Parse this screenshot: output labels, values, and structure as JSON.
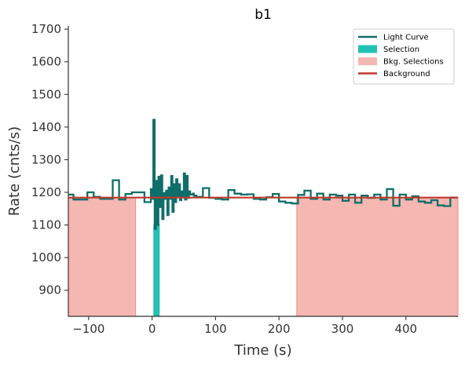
{
  "chart_data": {
    "type": "line",
    "title": "b1",
    "xlabel": "Time (s)",
    "ylabel": "Rate (cnts/s)",
    "xlim": [
      -132,
      482
    ],
    "ylim": [
      820,
      1710
    ],
    "xticks": [
      -100,
      0,
      100,
      200,
      300,
      400
    ],
    "xtick_labels": [
      "−100",
      "0",
      "100",
      "200",
      "300",
      "400"
    ],
    "yticks": [
      900,
      1000,
      1100,
      1200,
      1300,
      1400,
      1500,
      1600,
      1700
    ],
    "ytick_labels": [
      "900",
      "1000",
      "1100",
      "1200",
      "1300",
      "1400",
      "1500",
      "1600",
      "1700"
    ],
    "grid": false,
    "legend_position": "top-right",
    "colors": {
      "light_curve": "#0e6e6a",
      "selection": "#22c1b3",
      "bkg_fill": "#f5b7b1",
      "bkg_edge": "#ee8f86",
      "background": "#c0392b",
      "axis": "#333333"
    },
    "legend": [
      {
        "label": "Light Curve",
        "kind": "line",
        "color": "#0e6e6a"
      },
      {
        "label": "Selection",
        "kind": "patch",
        "color": "#22c1b3"
      },
      {
        "label": "Bkg. Selections",
        "kind": "patch",
        "color": "#f5b7b1"
      },
      {
        "label": "Background",
        "kind": "line",
        "color": "#c0392b"
      }
    ],
    "background_level": 1184,
    "selection": {
      "start": 2,
      "end": 12
    },
    "bkg_selections": [
      {
        "start": -132,
        "end": -26
      },
      {
        "start": 228,
        "end": 482
      }
    ],
    "light_curve": {
      "x": [
        -132,
        -124,
        -112,
        -102,
        -92,
        -82,
        -72,
        -62,
        -52,
        -42,
        -32,
        -22,
        -12,
        -2,
        0,
        2,
        4,
        6,
        8,
        10,
        12,
        14,
        16,
        18,
        20,
        22,
        24,
        26,
        28,
        30,
        32,
        34,
        36,
        38,
        40,
        42,
        44,
        46,
        48,
        50,
        52,
        54,
        56,
        58,
        60,
        62,
        64,
        66,
        70,
        80,
        90,
        100,
        110,
        120,
        130,
        140,
        150,
        160,
        170,
        180,
        190,
        200,
        210,
        220,
        230,
        240,
        250,
        260,
        270,
        280,
        290,
        300,
        310,
        320,
        330,
        340,
        350,
        360,
        370,
        380,
        390,
        400,
        410,
        420,
        430,
        440,
        450,
        460,
        470,
        482
      ],
      "y": [
        1193,
        1178,
        1178,
        1200,
        1186,
        1180,
        1180,
        1237,
        1178,
        1195,
        1200,
        1200,
        1170,
        1210,
        1180,
        1422,
        1088,
        1235,
        1100,
        1248,
        1155,
        1252,
        1118,
        1198,
        1180,
        1205,
        1130,
        1215,
        1180,
        1250,
        1140,
        1225,
        1170,
        1240,
        1186,
        1225,
        1176,
        1203,
        1188,
        1258,
        1178,
        1250,
        1183,
        1203,
        1193,
        1193,
        1196,
        1190,
        1186,
        1213,
        1183,
        1180,
        1178,
        1207,
        1196,
        1193,
        1194,
        1180,
        1178,
        1185,
        1195,
        1172,
        1168,
        1166,
        1192,
        1205,
        1180,
        1196,
        1178,
        1193,
        1190,
        1174,
        1193,
        1168,
        1190,
        1183,
        1193,
        1178,
        1210,
        1159,
        1193,
        1178,
        1188,
        1172,
        1168,
        1176,
        1160,
        1158,
        1184,
        1184
      ]
    }
  }
}
